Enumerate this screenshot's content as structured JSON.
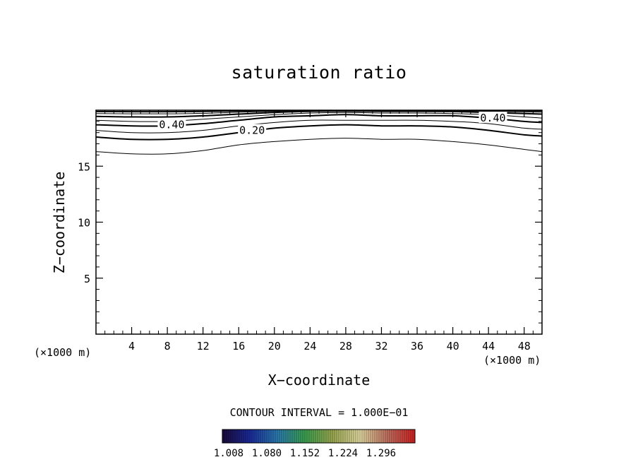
{
  "chart_data": {
    "type": "contour",
    "title": "saturation ratio",
    "xlabel": "X−coordinate",
    "ylabel": "Z−coordinate",
    "x_unit_left": "(×1000 m)",
    "x_unit_right": "(×1000 m)",
    "xlim": [
      0,
      50
    ],
    "ylim": [
      0,
      20
    ],
    "x_ticks": [
      4,
      8,
      12,
      16,
      20,
      24,
      28,
      32,
      36,
      40,
      44,
      48
    ],
    "x_tick_labels": [
      "4",
      "8",
      "12",
      "16",
      "20",
      "24",
      "28",
      "32",
      "36",
      "40",
      "44",
      "48"
    ],
    "y_ticks": [
      5,
      10,
      15
    ],
    "y_tick_labels": [
      "5",
      "10",
      "15"
    ],
    "contour_interval_text": "CONTOUR INTERVAL = 1.000E−01",
    "contour_labels": [
      {
        "text": "0.40",
        "x": 8.5,
        "z": 18.7
      },
      {
        "text": "0.20",
        "x": 17.5,
        "z": 18.2
      },
      {
        "text": "0.40",
        "x": 44.5,
        "z": 19.3
      }
    ],
    "contours": [
      {
        "level": 0.1,
        "bold": false,
        "points": [
          [
            0,
            16.3
          ],
          [
            4,
            16.1
          ],
          [
            8,
            16.1
          ],
          [
            12,
            16.4
          ],
          [
            16,
            16.9
          ],
          [
            20,
            17.2
          ],
          [
            24,
            17.4
          ],
          [
            28,
            17.5
          ],
          [
            32,
            17.4
          ],
          [
            36,
            17.4
          ],
          [
            40,
            17.2
          ],
          [
            44,
            16.9
          ],
          [
            48,
            16.5
          ],
          [
            50,
            16.3
          ]
        ]
      },
      {
        "level": 0.2,
        "bold": true,
        "points": [
          [
            0,
            17.6
          ],
          [
            4,
            17.4
          ],
          [
            8,
            17.4
          ],
          [
            12,
            17.6
          ],
          [
            16,
            18.0
          ],
          [
            20,
            18.4
          ],
          [
            24,
            18.6
          ],
          [
            28,
            18.7
          ],
          [
            32,
            18.6
          ],
          [
            36,
            18.6
          ],
          [
            40,
            18.5
          ],
          [
            44,
            18.2
          ],
          [
            48,
            17.8
          ],
          [
            50,
            17.7
          ]
        ]
      },
      {
        "level": 0.3,
        "bold": false,
        "points": [
          [
            0,
            18.2
          ],
          [
            4,
            18.0
          ],
          [
            8,
            18.0
          ],
          [
            12,
            18.2
          ],
          [
            16,
            18.6
          ],
          [
            20,
            18.9
          ],
          [
            24,
            19.1
          ],
          [
            28,
            19.1
          ],
          [
            32,
            19.1
          ],
          [
            36,
            19.1
          ],
          [
            40,
            19.0
          ],
          [
            44,
            18.8
          ],
          [
            48,
            18.4
          ],
          [
            50,
            18.3
          ]
        ]
      },
      {
        "level": 0.4,
        "bold": true,
        "points": [
          [
            0,
            18.7
          ],
          [
            4,
            18.6
          ],
          [
            8,
            18.6
          ],
          [
            12,
            18.8
          ],
          [
            16,
            19.1
          ],
          [
            20,
            19.4
          ],
          [
            24,
            19.5
          ],
          [
            28,
            19.6
          ],
          [
            32,
            19.5
          ],
          [
            36,
            19.5
          ],
          [
            40,
            19.5
          ],
          [
            44,
            19.3
          ],
          [
            48,
            19.0
          ],
          [
            50,
            18.9
          ]
        ]
      },
      {
        "level": 0.5,
        "bold": false,
        "points": [
          [
            0,
            19.1
          ],
          [
            4,
            19.0
          ],
          [
            8,
            19.0
          ],
          [
            12,
            19.2
          ],
          [
            16,
            19.4
          ],
          [
            20,
            19.6
          ],
          [
            24,
            19.75
          ],
          [
            28,
            19.8
          ],
          [
            32,
            19.75
          ],
          [
            36,
            19.75
          ],
          [
            40,
            19.7
          ],
          [
            44,
            19.6
          ],
          [
            48,
            19.4
          ],
          [
            50,
            19.3
          ]
        ]
      },
      {
        "level": 0.6,
        "bold": true,
        "points": [
          [
            0,
            19.45
          ],
          [
            4,
            19.4
          ],
          [
            8,
            19.4
          ],
          [
            12,
            19.5
          ],
          [
            16,
            19.65
          ],
          [
            20,
            19.8
          ],
          [
            24,
            19.9
          ],
          [
            28,
            19.92
          ],
          [
            32,
            19.9
          ],
          [
            36,
            19.9
          ],
          [
            40,
            19.88
          ],
          [
            44,
            19.8
          ],
          [
            48,
            19.7
          ],
          [
            50,
            19.65
          ]
        ]
      },
      {
        "level": 0.7,
        "bold": false,
        "points": [
          [
            0,
            19.7
          ],
          [
            4,
            19.68
          ],
          [
            8,
            19.68
          ],
          [
            12,
            19.72
          ],
          [
            16,
            19.82
          ],
          [
            20,
            19.9
          ],
          [
            24,
            19.96
          ],
          [
            28,
            19.97
          ],
          [
            32,
            19.96
          ],
          [
            36,
            19.96
          ],
          [
            40,
            19.95
          ],
          [
            44,
            19.9
          ],
          [
            48,
            19.85
          ],
          [
            50,
            19.82
          ]
        ]
      },
      {
        "level": 0.8,
        "bold": true,
        "points": [
          [
            0,
            19.88
          ],
          [
            4,
            19.87
          ],
          [
            8,
            19.87
          ],
          [
            12,
            19.89
          ],
          [
            16,
            19.93
          ],
          [
            20,
            19.97
          ],
          [
            24,
            19.99
          ],
          [
            28,
            20.0
          ],
          [
            32,
            19.99
          ],
          [
            36,
            19.99
          ],
          [
            40,
            19.99
          ],
          [
            44,
            19.97
          ],
          [
            48,
            19.95
          ],
          [
            50,
            19.94
          ]
        ]
      }
    ],
    "colorbar": {
      "tick_labels": [
        "1.008",
        "1.080",
        "1.152",
        "1.224",
        "1.296"
      ],
      "stops": [
        "#1a0a3a",
        "#1a2a9a",
        "#2a7ab0",
        "#3aa050",
        "#9aa850",
        "#e0d8a0",
        "#c07060",
        "#d02020"
      ]
    },
    "grid": false
  }
}
